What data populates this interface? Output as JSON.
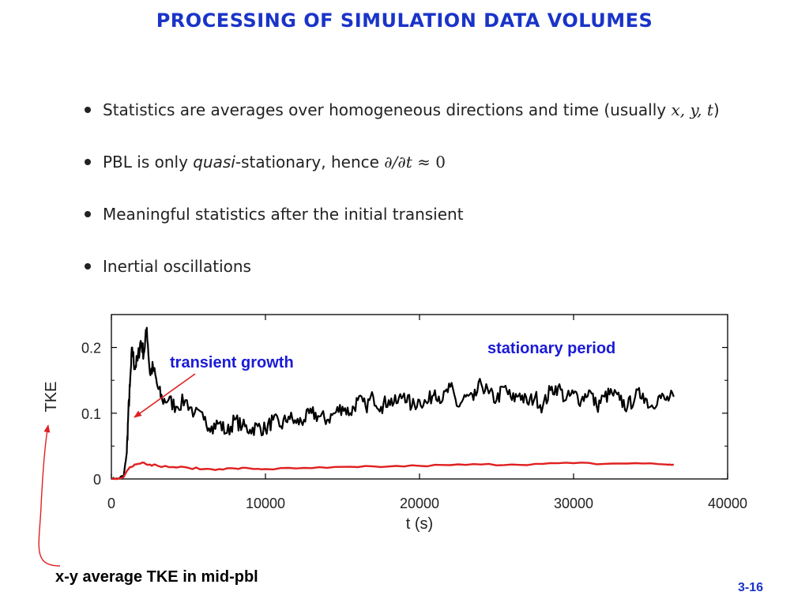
{
  "slide": {
    "title": "PROCESSING OF SIMULATION DATA VOLUMES",
    "slide_number": "3-16",
    "caption": "x-y average TKE in mid-pbl"
  },
  "bullets": [
    {
      "text_before": "Statistics are averages over homogeneous directions and time (usually ",
      "math": "x, y, t",
      "text_after": ")"
    },
    {
      "text_before": "PBL is only ",
      "emph": "quasi",
      "text_mid": "-stationary, hence ",
      "math": "∂/∂t",
      "math_tail": " ≈ 0"
    },
    {
      "text": "Meaningful statistics after the initial transient"
    },
    {
      "text": "Inertial oscillations"
    }
  ],
  "colors": {
    "title": "#1a34c8",
    "annotation_blue": "#1a1ad6",
    "series_black": "#000000",
    "series_red": "#e02020",
    "arrow_red": "#e02020"
  },
  "chart_data": {
    "type": "line",
    "xlabel": "t (s)",
    "ylabel": "TKE",
    "xlim": [
      0,
      40000
    ],
    "ylim": [
      0,
      0.25
    ],
    "x_ticks": [
      0,
      10000,
      20000,
      30000,
      40000
    ],
    "x_tick_labels": [
      "0",
      "10000",
      "20000",
      "30000",
      "40000"
    ],
    "y_ticks": [
      0,
      0.1,
      0.2
    ],
    "y_tick_labels": [
      "0",
      "0.1",
      "0.2"
    ],
    "grid": false,
    "legend": "none",
    "annotations": [
      "transient growth",
      "stationary period"
    ],
    "series": [
      {
        "color": "#000000",
        "x": [
          0,
          400,
          800,
          1000,
          1100,
          1200,
          1350,
          1500,
          1700,
          1900,
          2100,
          2300,
          2500,
          2700,
          3000,
          3300,
          3700,
          4200,
          4800,
          5400,
          6000,
          6500,
          7000,
          7500,
          8000,
          8500,
          9000,
          9500,
          10000,
          10500,
          11000,
          11500,
          12000,
          12500,
          13000,
          13500,
          14000,
          14500,
          15000,
          15500,
          16000,
          16500,
          17000,
          17500,
          18000,
          18500,
          19000,
          19500,
          20000,
          20500,
          21000,
          21500,
          22000,
          22500,
          23000,
          23500,
          24000,
          24500,
          25000,
          25500,
          26000,
          26500,
          27000,
          27500,
          28000,
          28500,
          29000,
          29500,
          30000,
          30500,
          31000,
          31500,
          32000,
          32500,
          33000,
          33500,
          34000,
          34500,
          35000,
          35500,
          36000,
          36500
        ],
        "values": [
          0.0,
          0.0,
          0.005,
          0.04,
          0.1,
          0.14,
          0.2,
          0.17,
          0.18,
          0.21,
          0.19,
          0.23,
          0.16,
          0.17,
          0.14,
          0.12,
          0.12,
          0.11,
          0.12,
          0.1,
          0.09,
          0.08,
          0.085,
          0.07,
          0.09,
          0.08,
          0.075,
          0.08,
          0.075,
          0.09,
          0.08,
          0.095,
          0.085,
          0.09,
          0.1,
          0.095,
          0.09,
          0.1,
          0.11,
          0.1,
          0.12,
          0.11,
          0.125,
          0.11,
          0.12,
          0.115,
          0.13,
          0.11,
          0.12,
          0.115,
          0.135,
          0.12,
          0.14,
          0.11,
          0.125,
          0.12,
          0.145,
          0.13,
          0.12,
          0.14,
          0.12,
          0.13,
          0.115,
          0.125,
          0.11,
          0.135,
          0.14,
          0.12,
          0.13,
          0.12,
          0.135,
          0.11,
          0.125,
          0.13,
          0.12,
          0.11,
          0.125,
          0.13,
          0.11,
          0.125,
          0.12,
          0.125
        ]
      },
      {
        "color": "#e02020",
        "x": [
          0,
          400,
          800,
          1000,
          1200,
          1500,
          2000,
          2500,
          3000,
          4000,
          5000,
          6000,
          7000,
          8000,
          9000,
          10000,
          12000,
          14000,
          16000,
          18000,
          20000,
          22000,
          24000,
          26000,
          28000,
          30000,
          32000,
          34000,
          36000,
          36500
        ],
        "values": [
          0.0,
          0.0,
          0.003,
          0.012,
          0.018,
          0.022,
          0.025,
          0.022,
          0.02,
          0.018,
          0.017,
          0.015,
          0.015,
          0.016,
          0.016,
          0.015,
          0.016,
          0.017,
          0.018,
          0.019,
          0.02,
          0.021,
          0.022,
          0.022,
          0.023,
          0.024,
          0.023,
          0.024,
          0.022,
          0.022
        ]
      }
    ]
  }
}
